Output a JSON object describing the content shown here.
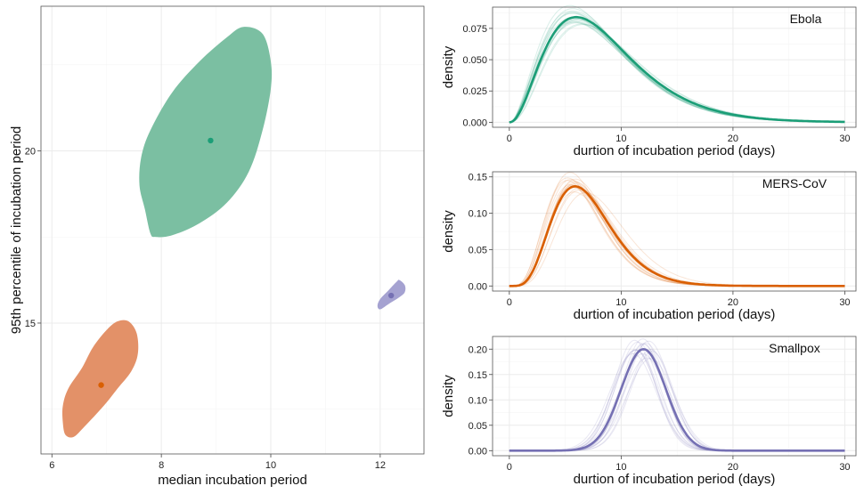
{
  "chart_data": [
    {
      "type": "scatter",
      "xlabel": "median incubation period",
      "ylabel": "95th percentile of incubation period",
      "xlim": [
        5.8,
        12.8
      ],
      "ylim": [
        11.2,
        24.2
      ],
      "xticks": [
        6,
        8,
        10,
        12
      ],
      "yticks": [
        15,
        20
      ],
      "grid": true,
      "series": [
        {
          "color": "#1b9e77",
          "fill": "#7bbfa2",
          "point": [
            8.9,
            20.3
          ],
          "region": [
            [
              9.5,
              23.6
            ],
            [
              9.85,
              23.4
            ],
            [
              10.0,
              22.6
            ],
            [
              10.0,
              21.8
            ],
            [
              9.85,
              20.6
            ],
            [
              9.6,
              19.4
            ],
            [
              9.2,
              18.5
            ],
            [
              8.7,
              17.9
            ],
            [
              8.2,
              17.55
            ],
            [
              7.9,
              17.5
            ],
            [
              7.8,
              17.6
            ],
            [
              7.7,
              18.3
            ],
            [
              7.6,
              19.0
            ],
            [
              7.63,
              19.8
            ],
            [
              7.8,
              20.6
            ],
            [
              8.2,
              21.7
            ],
            [
              8.7,
              22.6
            ],
            [
              9.2,
              23.3
            ]
          ]
        },
        {
          "color": "#d95f02",
          "fill": "#e39168",
          "point": [
            6.9,
            13.2
          ],
          "region": [
            [
              7.4,
              15.05
            ],
            [
              7.55,
              14.7
            ],
            [
              7.57,
              14.1
            ],
            [
              7.45,
              13.6
            ],
            [
              7.2,
              13.1
            ],
            [
              6.95,
              12.6
            ],
            [
              6.6,
              12.0
            ],
            [
              6.4,
              11.7
            ],
            [
              6.25,
              11.75
            ],
            [
              6.2,
              12.1
            ],
            [
              6.2,
              12.6
            ],
            [
              6.3,
              13.1
            ],
            [
              6.55,
              13.7
            ],
            [
              6.75,
              14.3
            ],
            [
              7.0,
              14.8
            ],
            [
              7.2,
              15.05
            ]
          ]
        },
        {
          "color": "#7570b3",
          "fill": "#a5a2d1",
          "point": [
            12.2,
            15.8
          ],
          "region": [
            [
              12.35,
              16.25
            ],
            [
              12.45,
              16.1
            ],
            [
              12.45,
              15.9
            ],
            [
              12.35,
              15.75
            ],
            [
              12.15,
              15.55
            ],
            [
              12.0,
              15.4
            ],
            [
              11.95,
              15.5
            ],
            [
              12.0,
              15.7
            ],
            [
              12.15,
              15.95
            ],
            [
              12.3,
              16.2
            ]
          ]
        }
      ]
    },
    {
      "type": "line",
      "label": "Ebola",
      "color": "#1b9e77",
      "dist": "gamma",
      "shape": 3.3,
      "scale": 2.6,
      "peak": 0.084,
      "xlabel": "durtion of incubation period (days)",
      "ylabel": "density",
      "xlim": [
        -1.5,
        31
      ],
      "ylim": [
        -0.004,
        0.092
      ],
      "xticks": [
        0,
        10,
        20,
        30
      ],
      "yticks": [
        "0.000",
        "0.025",
        "0.050",
        "0.075"
      ],
      "grid": true
    },
    {
      "type": "line",
      "label": "MERS-CoV",
      "color": "#d95f02",
      "dist": "gamma",
      "shape": 5.9,
      "scale": 1.2,
      "peak": 0.137,
      "xlabel": "durtion of incubation period (days)",
      "ylabel": "density",
      "xlim": [
        -1.5,
        31
      ],
      "ylim": [
        -0.007,
        0.157
      ],
      "xticks": [
        0,
        10,
        20,
        30
      ],
      "yticks": [
        "0.00",
        "0.05",
        "0.10",
        "0.15"
      ],
      "grid": true
    },
    {
      "type": "line",
      "label": "Smallpox",
      "color": "#7570b3",
      "dist": "normal",
      "mean": 12,
      "sd": 2.0,
      "peak": 0.2,
      "xlabel": "durtion of incubation period (days)",
      "ylabel": "density",
      "xlim": [
        -1.5,
        31
      ],
      "ylim": [
        -0.01,
        0.225
      ],
      "xticks": [
        0,
        10,
        20,
        30
      ],
      "yticks": [
        "0.00",
        "0.05",
        "0.10",
        "0.15",
        "0.20"
      ],
      "grid": true
    }
  ]
}
